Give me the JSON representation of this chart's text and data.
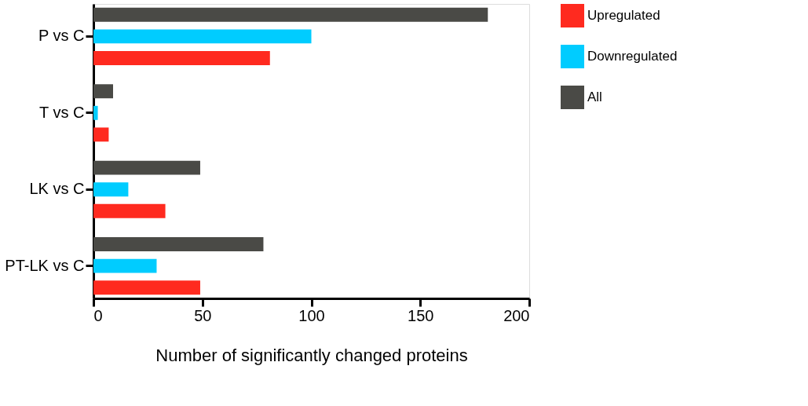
{
  "chart_data": {
    "type": "bar",
    "orientation": "horizontal",
    "xlabel": "Number of significantly changed proteins",
    "categories": [
      "P vs C",
      "T vs C",
      "LK vs C",
      "PT-LK vs C"
    ],
    "series": [
      {
        "name": "Upregulated",
        "color": "#ff2a1f",
        "values": [
          81,
          7,
          33,
          49
        ]
      },
      {
        "name": "Downregulated",
        "color": "#00ccff",
        "values": [
          100,
          2,
          16,
          29
        ]
      },
      {
        "name": "All",
        "color": "#4a4a46",
        "values": [
          181,
          9,
          49,
          78
        ]
      }
    ],
    "xlim": [
      0,
      200
    ],
    "xticks": [
      0,
      50,
      100,
      150,
      200
    ],
    "grid": false,
    "legend": "right"
  }
}
